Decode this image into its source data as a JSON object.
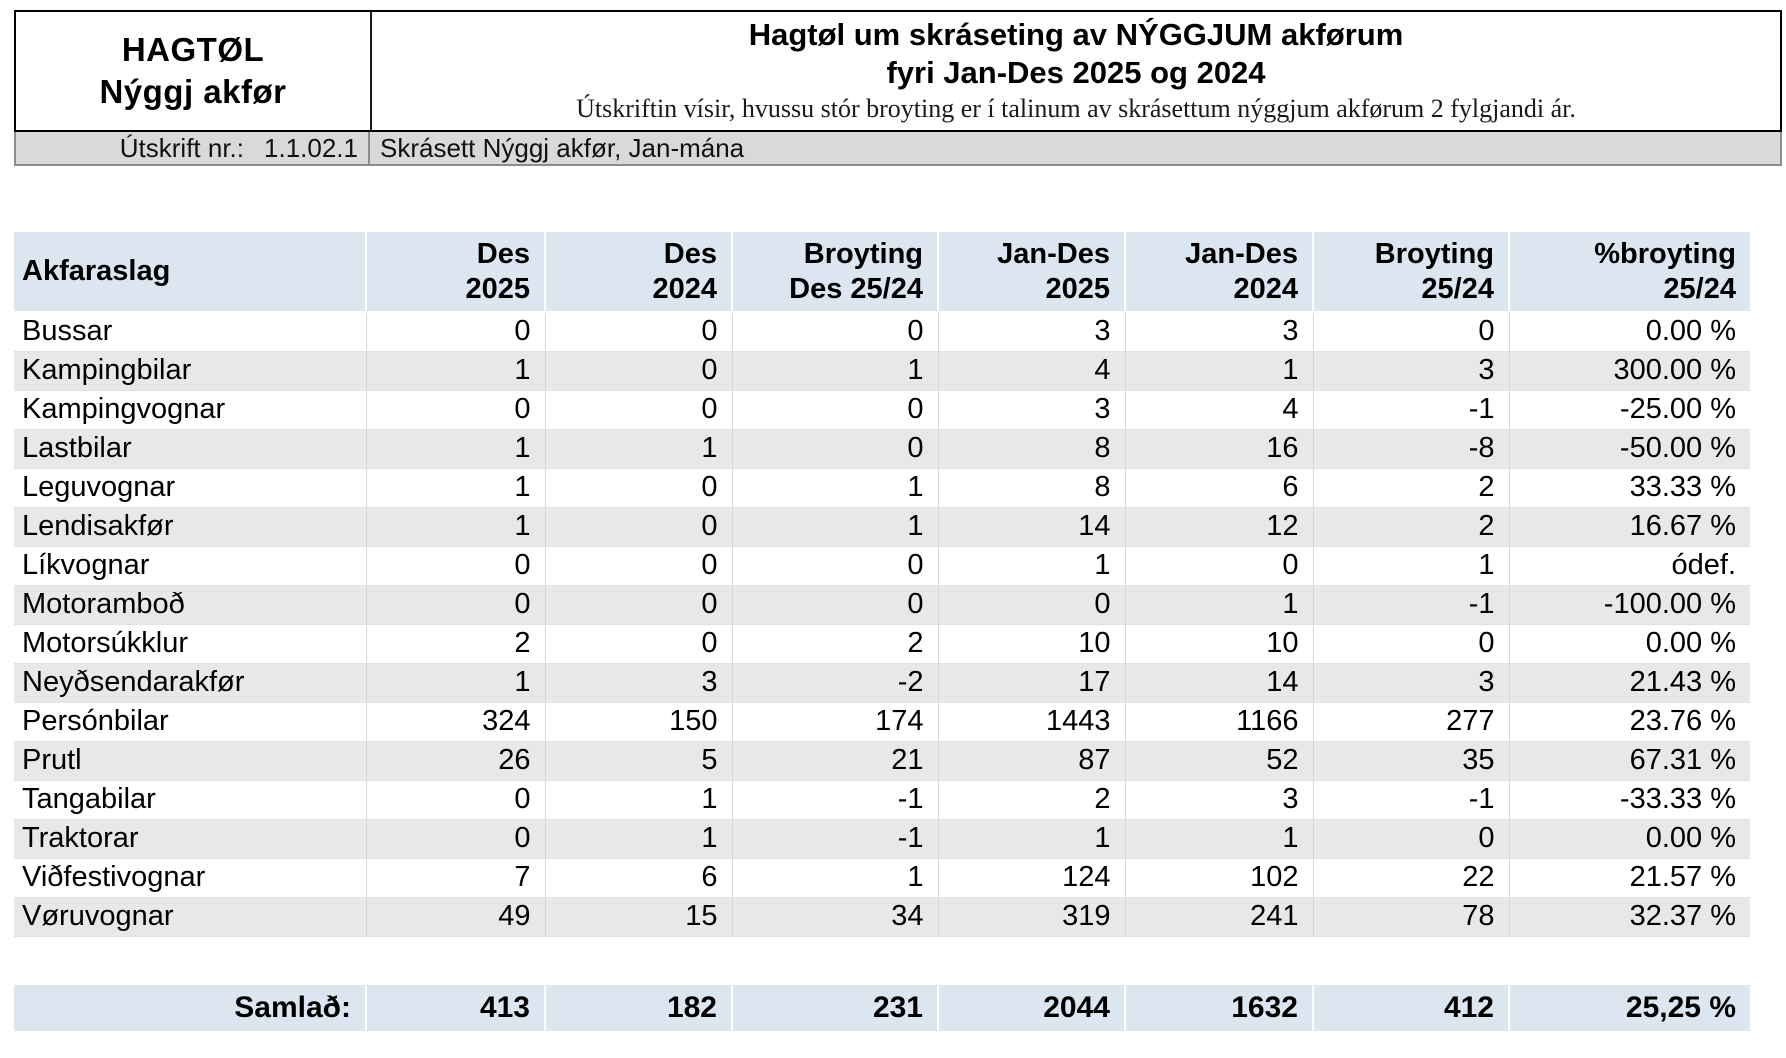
{
  "masthead": {
    "logo_line1": "HAGTØL",
    "logo_line2": "Nýggj akfør",
    "title_line1": "Hagtøl um skráseting av NÝGGJUM akførum",
    "title_line2": "fyri Jan-Des 2025 og 2024",
    "subtitle": "Útskriftin vísir, hvussu stór broyting er í talinum av skrásettum nýggjum akførum 2 fylgjandi ár.",
    "print_label": "Útskrift nr.:",
    "print_number": "1.1.02.1",
    "print_description": "Skrásett Nýggj akfør, Jan-mána"
  },
  "table": {
    "columns": [
      {
        "line1": "Akfaraslag",
        "line2": ""
      },
      {
        "line1": "Des",
        "line2": "2025"
      },
      {
        "line1": "Des",
        "line2": "2024"
      },
      {
        "line1": "Broyting",
        "line2": "Des 25/24"
      },
      {
        "line1": "Jan-Des",
        "line2": "2025"
      },
      {
        "line1": "Jan-Des",
        "line2": "2024"
      },
      {
        "line1": "Broyting",
        "line2": "25/24"
      },
      {
        "line1": "%broyting",
        "line2": "25/24"
      }
    ],
    "rows": [
      {
        "label": "Bussar",
        "values": [
          "0",
          "0",
          "0",
          "3",
          "3",
          "0",
          "0.00 %"
        ]
      },
      {
        "label": "Kampingbilar",
        "values": [
          "1",
          "0",
          "1",
          "4",
          "1",
          "3",
          "300.00 %"
        ]
      },
      {
        "label": "Kampingvognar",
        "values": [
          "0",
          "0",
          "0",
          "3",
          "4",
          "-1",
          "-25.00 %"
        ]
      },
      {
        "label": "Lastbilar",
        "values": [
          "1",
          "1",
          "0",
          "8",
          "16",
          "-8",
          "-50.00 %"
        ]
      },
      {
        "label": "Leguvognar",
        "values": [
          "1",
          "0",
          "1",
          "8",
          "6",
          "2",
          "33.33 %"
        ]
      },
      {
        "label": "Lendisakfør",
        "values": [
          "1",
          "0",
          "1",
          "14",
          "12",
          "2",
          "16.67 %"
        ]
      },
      {
        "label": "Líkvognar",
        "values": [
          "0",
          "0",
          "0",
          "1",
          "0",
          "1",
          "ódef."
        ]
      },
      {
        "label": "Motoramboð",
        "values": [
          "0",
          "0",
          "0",
          "0",
          "1",
          "-1",
          "-100.00 %"
        ]
      },
      {
        "label": "Motorsúkklur",
        "values": [
          "2",
          "0",
          "2",
          "10",
          "10",
          "0",
          "0.00 %"
        ]
      },
      {
        "label": "Neyðsendarakfør",
        "values": [
          "1",
          "3",
          "-2",
          "17",
          "14",
          "3",
          "21.43 %"
        ]
      },
      {
        "label": "Persónbilar",
        "values": [
          "324",
          "150",
          "174",
          "1443",
          "1166",
          "277",
          "23.76 %"
        ]
      },
      {
        "label": "Prutl",
        "values": [
          "26",
          "5",
          "21",
          "87",
          "52",
          "35",
          "67.31 %"
        ]
      },
      {
        "label": "Tangabilar",
        "values": [
          "0",
          "1",
          "-1",
          "2",
          "3",
          "-1",
          "-33.33 %"
        ]
      },
      {
        "label": "Traktorar",
        "values": [
          "0",
          "1",
          "-1",
          "1",
          "1",
          "0",
          "0.00 %"
        ]
      },
      {
        "label": "Viðfestivognar",
        "values": [
          "7",
          "6",
          "1",
          "124",
          "102",
          "22",
          "21.57 %"
        ]
      },
      {
        "label": "Vøruvognar",
        "values": [
          "49",
          "15",
          "34",
          "319",
          "241",
          "78",
          "32.37 %"
        ]
      }
    ],
    "total": {
      "label": "Samlað:",
      "values": [
        "413",
        "182",
        "231",
        "2044",
        "1632",
        "412",
        "25,25 %"
      ]
    }
  },
  "colors": {
    "header_bg": "#dce6f1",
    "stripe_bg": "#e8e8e8",
    "strip_bg": "#d9d9d9"
  }
}
